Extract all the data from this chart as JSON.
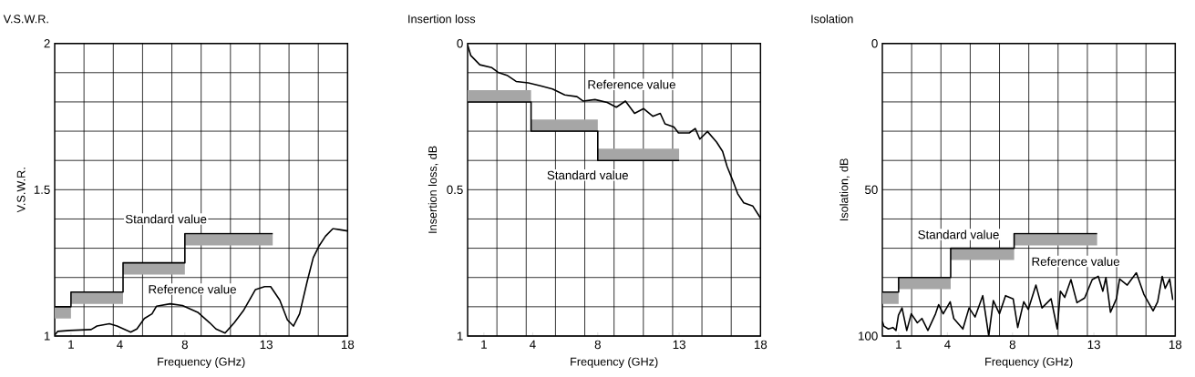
{
  "chart_data": [
    {
      "type": "line",
      "title": "V.S.W.R.",
      "xlabel": "Frequency (GHz)",
      "ylabel": "V.S.W.R.",
      "xlim": [
        0,
        18
      ],
      "ylim": [
        1,
        2
      ],
      "grid": true,
      "xticks": [
        1,
        4,
        8,
        13,
        18,
        {
          "value": 1.8,
          "label": null
        },
        {
          "value": 3.6,
          "label": null
        },
        {
          "value": 5.4,
          "label": null
        },
        {
          "value": 7.2,
          "label": null
        },
        {
          "value": 9,
          "label": null
        },
        {
          "value": 10.8,
          "label": null
        },
        {
          "value": 12.6,
          "label": null
        },
        {
          "value": 14.4,
          "label": null
        },
        {
          "value": 16.2,
          "label": null
        }
      ],
      "yticks": [
        1,
        1.5,
        2,
        {
          "value": 1.1,
          "label": null
        },
        {
          "value": 1.2,
          "label": null
        },
        {
          "value": 1.3,
          "label": null
        },
        {
          "value": 1.4,
          "label": null
        },
        {
          "value": 1.6,
          "label": null
        },
        {
          "value": 1.7,
          "label": null
        },
        {
          "value": 1.8,
          "label": null
        },
        {
          "value": 1.9,
          "label": null
        }
      ],
      "series": [
        {
          "type": "step",
          "color": "#000000",
          "x": [
            0,
            1,
            4.2,
            8,
            13.4
          ],
          "values": [
            1.1,
            1.15,
            1.25,
            1.35,
            1.35
          ],
          "lower": [
            1.06,
            1.11,
            1.21,
            1.31,
            1.31
          ],
          "upper": [
            1.1,
            1.15,
            1.25,
            1.35,
            1.35
          ]
        },
        {
          "color": "#000000",
          "x": [
            0,
            0.19,
            0.93,
            2.24,
            2.6,
            3.36,
            3.83,
            4.67,
            5.05,
            5.51,
            5.98,
            6.26,
            7.1,
            7.85,
            8.79,
            9.53,
            9.91,
            10.47,
            11.03,
            11.59,
            12.34,
            12.9,
            13.27,
            13.83,
            14.3,
            14.67,
            15.05,
            15.51,
            15.89,
            16.26,
            16.64,
            17.1,
            17.57,
            18
          ],
          "values": [
            1.003,
            1.016,
            1.019,
            1.022,
            1.034,
            1.042,
            1.034,
            1.013,
            1.024,
            1.06,
            1.076,
            1.102,
            1.11,
            1.104,
            1.081,
            1.045,
            1.024,
            1.01,
            1.045,
            1.086,
            1.159,
            1.169,
            1.169,
            1.123,
            1.055,
            1.034,
            1.076,
            1.185,
            1.268,
            1.309,
            1.341,
            1.367,
            1.363,
            1.359
          ]
        }
      ],
      "annotations": [
        "Standard value",
        "Reference value"
      ]
    },
    {
      "type": "line",
      "title": "Insertion loss",
      "xlabel": "Frequency (GHz)",
      "ylabel": "Insertion loss, dB",
      "xlim": [
        0,
        18
      ],
      "ylim": [
        1,
        0
      ],
      "grid": true,
      "xticks": [
        1,
        4,
        8,
        13,
        18,
        {
          "value": 1.8,
          "label": null
        },
        {
          "value": 3.6,
          "label": null
        },
        {
          "value": 5.4,
          "label": null
        },
        {
          "value": 7.2,
          "label": null
        },
        {
          "value": 9,
          "label": null
        },
        {
          "value": 10.8,
          "label": null
        },
        {
          "value": 12.6,
          "label": null
        },
        {
          "value": 14.4,
          "label": null
        },
        {
          "value": 16.2,
          "label": null
        }
      ],
      "yticks": [
        0,
        0.5,
        1,
        {
          "value": 0.1,
          "label": null
        },
        {
          "value": 0.2,
          "label": null
        },
        {
          "value": 0.3,
          "label": null
        },
        {
          "value": 0.4,
          "label": null
        },
        {
          "value": 0.6,
          "label": null
        },
        {
          "value": 0.7,
          "label": null
        },
        {
          "value": 0.8,
          "label": null
        },
        {
          "value": 0.9,
          "label": null
        }
      ],
      "series": [
        {
          "type": "step",
          "color": "#000000",
          "x": [
            0,
            3.9,
            8,
            13
          ],
          "values": [
            0.2,
            0.3,
            0.4,
            0.4
          ],
          "lower": [
            0.16,
            0.26,
            0.36,
            0.36
          ],
          "upper": [
            0.2,
            0.3,
            0.4,
            0.4
          ]
        },
        {
          "color": "#000000",
          "x": [
            0,
            0.19,
            0.75,
            1.49,
            1.87,
            2.42,
            2.98,
            3.73,
            4.48,
            5.22,
            5.97,
            6.72,
            7.09,
            7.83,
            8.58,
            9.14,
            9.7,
            10.26,
            10.82,
            11.38,
            11.84,
            12.13,
            12.68,
            12.96,
            13.62,
            13.99,
            14.27,
            14.74,
            15.3,
            15.67,
            15.95,
            16.32,
            16.6,
            16.97,
            17.53,
            18
          ],
          "values": [
            0.005,
            0.041,
            0.073,
            0.083,
            0.099,
            0.109,
            0.13,
            0.135,
            0.145,
            0.156,
            0.176,
            0.182,
            0.197,
            0.192,
            0.202,
            0.218,
            0.197,
            0.239,
            0.223,
            0.249,
            0.239,
            0.275,
            0.286,
            0.306,
            0.306,
            0.291,
            0.327,
            0.301,
            0.337,
            0.369,
            0.421,
            0.472,
            0.514,
            0.545,
            0.556,
            0.597
          ]
        }
      ],
      "annotations": [
        "Reference value",
        "Standard value"
      ]
    },
    {
      "type": "line",
      "title": "Isolation",
      "xlabel": "Frequency (GHz)",
      "ylabel": "Isolation, dB",
      "xlim": [
        0,
        18
      ],
      "ylim": [
        100,
        0
      ],
      "grid": true,
      "xticks": [
        1,
        4,
        8,
        13,
        18,
        {
          "value": 1.8,
          "label": null
        },
        {
          "value": 3.6,
          "label": null
        },
        {
          "value": 5.4,
          "label": null
        },
        {
          "value": 7.2,
          "label": null
        },
        {
          "value": 9,
          "label": null
        },
        {
          "value": 10.8,
          "label": null
        },
        {
          "value": 12.6,
          "label": null
        },
        {
          "value": 14.4,
          "label": null
        },
        {
          "value": 16.2,
          "label": null
        }
      ],
      "yticks": [
        0,
        50,
        100,
        {
          "value": 10,
          "label": null
        },
        {
          "value": 20,
          "label": null
        },
        {
          "value": 30,
          "label": null
        },
        {
          "value": 40,
          "label": null
        },
        {
          "value": 60,
          "label": null
        },
        {
          "value": 70,
          "label": null
        },
        {
          "value": 80,
          "label": null
        },
        {
          "value": 90,
          "label": null
        }
      ],
      "series": [
        {
          "type": "step",
          "color": "#000000",
          "x": [
            0,
            1,
            4.2,
            8.1,
            13.2
          ],
          "values": [
            85,
            80,
            70,
            65,
            65
          ],
          "lower": [
            85,
            80,
            70,
            65,
            65
          ],
          "upper": [
            89,
            84,
            74,
            69,
            69
          ]
        },
        {
          "color": "#000000",
          "x": [
            0,
            0.09,
            0.37,
            0.65,
            0.84,
            0.99,
            1.21,
            1.5,
            1.78,
            2.15,
            2.43,
            2.8,
            3.27,
            3.46,
            3.74,
            4.17,
            4.39,
            4.95,
            5.33,
            5.7,
            6.17,
            6.54,
            6.82,
            7.2,
            7.57,
            8.04,
            8.32,
            8.69,
            8.97,
            9.44,
            9.81,
            10.37,
            10.75,
            10.94,
            11.21,
            11.59,
            11.96,
            12.43,
            12.9,
            13.27,
            13.55,
            13.74,
            14.02,
            14.39,
            14.58,
            15.05,
            15.61,
            16.07,
            16.64,
            16.92,
            17.2,
            17.38,
            17.66,
            17.85
          ],
          "values": [
            95,
            96.6,
            97.6,
            97.1,
            98.1,
            92.9,
            90.4,
            98.1,
            92.4,
            95.5,
            94,
            98.1,
            92.4,
            89.3,
            92.4,
            88.3,
            94,
            97.6,
            90.4,
            93.5,
            86.2,
            100,
            87.9,
            92.4,
            86.2,
            87.3,
            97.1,
            88.3,
            90.9,
            82.6,
            90.4,
            87.3,
            97.6,
            84.7,
            86.8,
            80.7,
            88.6,
            87,
            80.7,
            79.6,
            84.7,
            80,
            91.9,
            87.2,
            80.5,
            82.6,
            78.4,
            85.7,
            91.4,
            88.3,
            79.6,
            83.7,
            80.5,
            87.7
          ]
        }
      ],
      "annotations": [
        "Standard value",
        "Reference value"
      ]
    }
  ]
}
